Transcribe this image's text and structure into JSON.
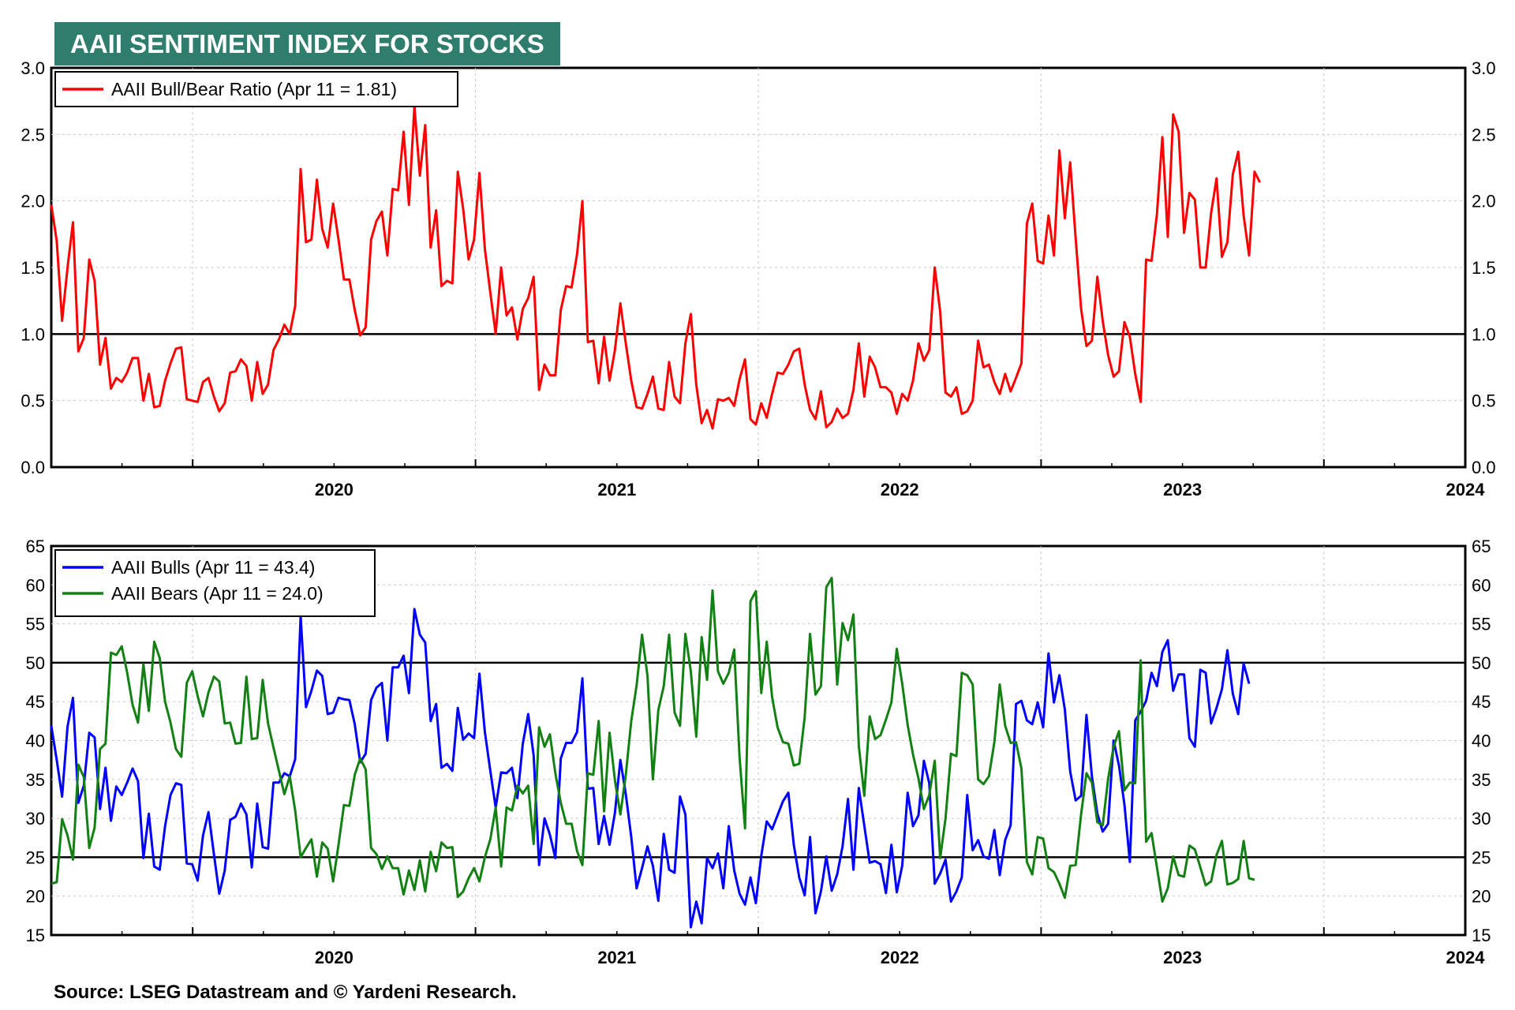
{
  "title": "AAII SENTIMENT INDEX FOR STOCKS",
  "source": "Source: LSEG Datastream and © Yardeni Research.",
  "colors": {
    "title_bg": "#2f7d6d",
    "ratio": "#ff0000",
    "bulls": "#0000ff",
    "bears": "#138013"
  },
  "chart_data": [
    {
      "type": "line",
      "x_axis_labels": [
        "2020",
        "2021",
        "2022",
        "2023",
        "2024"
      ],
      "y_ticks": [
        "0.0",
        "0.5",
        "1.0",
        "1.5",
        "2.0",
        "2.5",
        "3.0"
      ],
      "ylim": [
        0,
        3
      ],
      "reference_lines": [
        1.0
      ],
      "x_start": 2019.5,
      "x_step_weeks": 1,
      "series": [
        {
          "name": "AAII Bull/Bear Ratio (Apr 11 = 1.81)",
          "color": "#ff0000",
          "values": [
            1.97,
            1.7,
            1.1,
            1.5,
            1.84,
            0.87,
            0.97,
            1.56,
            1.4,
            0.77,
            0.97,
            0.59,
            0.67,
            0.64,
            0.71,
            0.82,
            0.82,
            0.5,
            0.7,
            0.45,
            0.46,
            0.65,
            0.78,
            0.89,
            0.9,
            0.51,
            0.5,
            0.49,
            0.64,
            0.67,
            0.53,
            0.42,
            0.48,
            0.71,
            0.72,
            0.81,
            0.76,
            0.5,
            0.79,
            0.55,
            0.62,
            0.88,
            0.96,
            1.07,
            1.0,
            1.21,
            2.24,
            1.69,
            1.71,
            2.16,
            1.79,
            1.65,
            1.98,
            1.71,
            1.41,
            1.41,
            1.18,
            0.99,
            1.05,
            1.71,
            1.85,
            1.92,
            1.59,
            2.09,
            2.08,
            2.52,
            1.97,
            2.71,
            2.19,
            2.57,
            1.65,
            1.93,
            1.36,
            1.4,
            1.38,
            2.22,
            1.94,
            1.56,
            1.71,
            2.21,
            1.64,
            1.31,
            1.0,
            1.5,
            1.14,
            1.2,
            0.96,
            1.19,
            1.27,
            1.43,
            0.58,
            0.77,
            0.69,
            0.69,
            1.18,
            1.36,
            1.35,
            1.6,
            2.0,
            0.94,
            0.95,
            0.63,
            0.98,
            0.65,
            0.88,
            1.23,
            0.93,
            0.65,
            0.45,
            0.44,
            0.55,
            0.68,
            0.44,
            0.43,
            0.79,
            0.53,
            0.48,
            0.93,
            1.15,
            0.62,
            0.33,
            0.43,
            0.29,
            0.51,
            0.5,
            0.52,
            0.46,
            0.66,
            0.81,
            0.36,
            0.32,
            0.48,
            0.37,
            0.55,
            0.71,
            0.7,
            0.77,
            0.87,
            0.89,
            0.62,
            0.43,
            0.36,
            0.57,
            0.3,
            0.34,
            0.44,
            0.37,
            0.4,
            0.58,
            0.93,
            0.53,
            0.83,
            0.75,
            0.6,
            0.6,
            0.56,
            0.4,
            0.55,
            0.5,
            0.65,
            0.93,
            0.8,
            0.88,
            1.5,
            1.17,
            0.56,
            0.53,
            0.6,
            0.4,
            0.42,
            0.5,
            0.95,
            0.75,
            0.77,
            0.64,
            0.55,
            0.7,
            0.57,
            0.67,
            0.78,
            1.83,
            1.98,
            1.55,
            1.53,
            1.89,
            1.59,
            2.38,
            1.87,
            2.29,
            1.72,
            1.19,
            0.91,
            0.95,
            1.43,
            1.1,
            0.84,
            0.68,
            0.72,
            1.09,
            0.98,
            0.7,
            0.49,
            1.56,
            1.55,
            1.9,
            2.48,
            1.73,
            2.65,
            2.52,
            1.76,
            2.06,
            2.01,
            1.5,
            1.5,
            1.91,
            2.17,
            1.58,
            1.69,
            2.2,
            2.37,
            1.89,
            1.59,
            2.22,
            2.14
          ]
        }
      ]
    },
    {
      "type": "line",
      "x_axis_labels": [
        "2020",
        "2021",
        "2022",
        "2023",
        "2024"
      ],
      "y_ticks": [
        "15",
        "20",
        "25",
        "30",
        "35",
        "40",
        "45",
        "50",
        "55",
        "60",
        "65"
      ],
      "ylim": [
        15,
        65
      ],
      "reference_lines": [
        25,
        50
      ],
      "x_start": 2019.5,
      "x_step_weeks": 1,
      "series": [
        {
          "name": "AAII Bulls  (Apr 11 = 43.4)",
          "color": "#0000ff",
          "values": [
            41.9,
            37.5,
            32.8,
            41.8,
            45.5,
            32.0,
            34.2,
            41.0,
            40.4,
            31.2,
            36.5,
            29.7,
            34.1,
            33.0,
            34.6,
            36.4,
            34.8,
            24.9,
            30.6,
            23.8,
            23.4,
            29.0,
            33.0,
            34.5,
            34.3,
            24.2,
            24.1,
            22.0,
            27.8,
            30.8,
            25.4,
            20.3,
            23.3,
            29.8,
            30.2,
            31.9,
            30.5,
            23.7,
            31.9,
            26.3,
            26.1,
            34.6,
            34.6,
            35.8,
            35.4,
            37.6,
            56.0,
            44.3,
            46.4,
            49.0,
            48.3,
            43.4,
            43.6,
            45.5,
            45.3,
            45.2,
            42.1,
            37.2,
            38.3,
            45.2,
            46.8,
            47.4,
            40.0,
            49.4,
            49.4,
            50.9,
            46.1,
            56.9,
            53.6,
            52.6,
            42.5,
            44.7,
            36.5,
            37.0,
            36.1,
            44.2,
            40.1,
            40.9,
            40.3,
            48.6,
            41.1,
            36.1,
            31.4,
            35.9,
            35.8,
            36.5,
            32.6,
            39.6,
            43.4,
            38.1,
            24.0,
            30.0,
            27.9,
            24.9,
            37.7,
            39.7,
            39.7,
            41.1,
            48.0,
            33.8,
            33.9,
            26.7,
            30.3,
            26.6,
            30.7,
            37.5,
            33.1,
            27.6,
            21.0,
            23.6,
            26.4,
            23.9,
            19.4,
            28.0,
            23.4,
            23.0,
            32.8,
            30.5,
            16.0,
            19.3,
            16.5,
            24.9,
            23.6,
            25.5,
            21.0,
            29.0,
            23.3,
            20.3,
            18.9,
            22.4,
            19.1,
            25.2,
            29.6,
            28.6,
            30.4,
            32.2,
            33.3,
            26.6,
            22.4,
            20.1,
            27.6,
            17.8,
            20.6,
            25.1,
            20.7,
            22.8,
            26.4,
            32.5,
            23.4,
            33.9,
            29.1,
            24.3,
            24.5,
            24.1,
            20.4,
            26.6,
            20.5,
            23.9,
            33.3,
            29.0,
            30.4,
            37.4,
            34.5,
            21.6,
            22.9,
            24.7,
            19.3,
            20.6,
            22.4,
            33.0,
            25.9,
            27.2,
            25.1,
            24.8,
            28.5,
            22.7,
            27.2,
            29.1,
            44.7,
            45.1,
            42.6,
            42.1,
            44.9,
            41.7,
            51.2,
            44.9,
            48.4,
            44.0,
            36.0,
            32.3,
            32.9,
            43.3,
            35.4,
            30.6,
            28.3,
            29.3,
            40.0,
            36.8,
            31.8,
            24.4,
            42.6,
            43.7,
            45.1,
            48.7,
            47.0,
            51.4,
            52.9,
            46.4,
            48.5,
            48.5,
            40.3,
            39.2,
            49.1,
            48.7,
            42.2,
            44.2,
            46.6,
            51.6,
            46.0,
            43.4,
            49.9,
            47.3
          ]
        },
        {
          "name": "AAII Bears (Apr 11 = 24.0)",
          "color": "#138013",
          "values": [
            21.6,
            21.8,
            29.9,
            27.8,
            24.7,
            36.9,
            35.3,
            26.2,
            28.8,
            38.9,
            39.6,
            51.3,
            51.0,
            52.1,
            48.7,
            44.6,
            42.3,
            49.8,
            43.8,
            52.7,
            50.6,
            45.0,
            42.3,
            38.9,
            37.9,
            47.4,
            48.9,
            45.7,
            43.1,
            46.2,
            48.2,
            47.6,
            42.2,
            42.3,
            39.6,
            39.7,
            48.2,
            40.2,
            40.3,
            47.8,
            42.2,
            39.1,
            36.1,
            33.1,
            35.4,
            31.0,
            25.0,
            26.2,
            27.3,
            22.5,
            26.9,
            26.1,
            21.9,
            26.6,
            31.7,
            31.6,
            35.6,
            37.7,
            36.3,
            26.2,
            25.4,
            23.5,
            25.1,
            23.6,
            23.6,
            20.2,
            23.3,
            20.8,
            24.6,
            20.6,
            25.7,
            23.2,
            26.9,
            26.2,
            26.3,
            19.9,
            20.6,
            22.3,
            23.6,
            21.9,
            25.0,
            27.3,
            31.4,
            23.8,
            31.4,
            31.0,
            34.2,
            33.2,
            34.2,
            26.7,
            41.7,
            39.2,
            40.8,
            35.8,
            32.0,
            29.3,
            29.3,
            25.8,
            24.0,
            35.8,
            35.6,
            42.5,
            30.9,
            41.0,
            34.9,
            30.5,
            35.6,
            42.5,
            47.1,
            53.6,
            48.3,
            35.0,
            43.9,
            47.0,
            53.6,
            43.6,
            41.9,
            53.7,
            48.9,
            40.5,
            53.3,
            47.8,
            59.3,
            48.9,
            47.3,
            48.7,
            51.7,
            37.8,
            28.7,
            57.9,
            59.2,
            46.1,
            52.7,
            45.6,
            41.7,
            39.8,
            39.6,
            36.8,
            37.0,
            43.0,
            53.7,
            45.9,
            47.0,
            59.7,
            60.9,
            47.2,
            55.1,
            52.9,
            56.2,
            39.3,
            32.9,
            43.1,
            40.2,
            40.7,
            42.7,
            44.9,
            51.8,
            47.3,
            42.0,
            38.2,
            35.1,
            31.2,
            33.0,
            37.4,
            24.9,
            30.0,
            38.3,
            38.0,
            48.7,
            48.4,
            47.2,
            35.0,
            34.4,
            35.4,
            39.8,
            47.2,
            41.9,
            39.7,
            39.8,
            36.4,
            24.4,
            22.8,
            27.6,
            27.4,
            23.6,
            23.1,
            21.6,
            19.8,
            23.9,
            24.0,
            30.5,
            35.8,
            34.6,
            29.5,
            29.1,
            35.1,
            39.2,
            41.2,
            33.6,
            34.6,
            34.5,
            50.3,
            27.0,
            28.1,
            23.7,
            19.3,
            21.0,
            25.1,
            22.7,
            22.5,
            26.5,
            26.0,
            23.7,
            21.4,
            21.9,
            25.3,
            27.1,
            21.5,
            21.7,
            22.2,
            27.1,
            22.3,
            22.1
          ]
        }
      ]
    }
  ]
}
